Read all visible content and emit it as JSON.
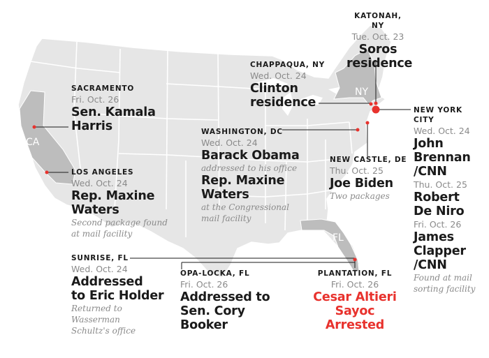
{
  "map": {
    "land_color": "#e6e6e6",
    "state_border_color": "#ffffff",
    "highlight_state_color": "#bdbdbd",
    "accent_color": "#e8322d",
    "state_abbreviations": [
      "CA",
      "NY",
      "FL"
    ]
  },
  "labels": {
    "katonah": {
      "location": "KATONAH, NY",
      "date": "Tue. Oct. 23",
      "headline_1": "Soros",
      "headline_2": "residence"
    },
    "chappaqua": {
      "location": "CHAPPAQUA, NY",
      "date": "Wed. Oct. 24",
      "headline_1": "Clinton",
      "headline_2": "residence"
    },
    "sacramento": {
      "location": "SACRAMENTO",
      "date": "Fri. Oct. 26",
      "headline_1": "Sen. Kamala",
      "headline_2": "Harris"
    },
    "washington": {
      "location": "WASHINGTON, DC",
      "date": "Wed. Oct. 24",
      "headline_1": "Barack Obama",
      "note_1": "addressed to his office",
      "headline_2": "Rep. Maxine",
      "headline_3": "Waters",
      "note_2": "at the Congressional",
      "note_3": "mail facility"
    },
    "new_castle": {
      "location": "NEW CASTLE, DE",
      "date": "Thu. Oct. 25",
      "headline_1": "Joe Biden",
      "note_1": "Two packages"
    },
    "los_angeles": {
      "location": "LOS ANGELES",
      "date": "Wed. Oct. 24",
      "headline_1": "Rep. Maxine",
      "headline_2": "Waters",
      "note_1": "Second package found",
      "note_2": "at mail facility"
    },
    "new_york_city": {
      "location_1": "NEW YORK",
      "location_2": "CITY",
      "date_1": "Wed. Oct. 24",
      "headline_1": "John",
      "headline_2": "Brennan",
      "headline_3": "/CNN",
      "date_2": "Thu. Oct. 25",
      "headline_4": "Robert",
      "headline_5": "De Niro",
      "date_3": "Fri. Oct. 26",
      "headline_6": "James",
      "headline_7": "Clapper",
      "headline_8": "/CNN",
      "note_1": "Found at mail",
      "note_2": "sorting facility"
    },
    "sunrise": {
      "location": "SUNRISE, FL",
      "date": "Wed. Oct. 24",
      "headline_1": "Addressed",
      "headline_2": "to Eric Holder",
      "note_1": "Returned to",
      "note_2": "Wasserman",
      "note_3": "Schultz's office"
    },
    "opa_locka": {
      "location": "OPA-LOCKA, FL",
      "date": "Fri. Oct. 26",
      "headline_1": "Addressed to",
      "headline_2": "Sen. Cory",
      "headline_3": "Booker"
    },
    "plantation": {
      "location": "PLANTATION, FL",
      "date": "Fri. Oct. 26",
      "headline_1": "Cesar Altieri",
      "headline_2": "Sayoc",
      "headline_3": "Arrested"
    }
  }
}
